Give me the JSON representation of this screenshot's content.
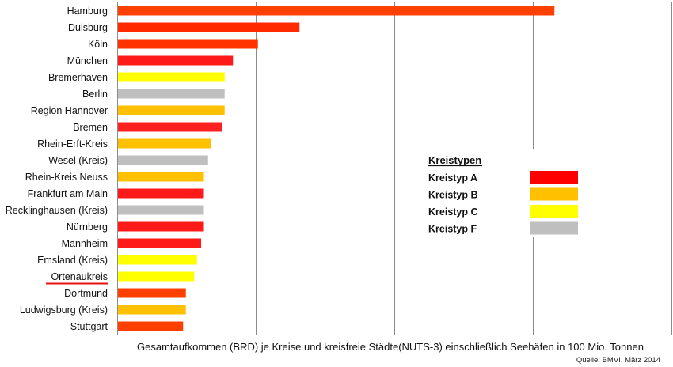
{
  "chart_data": {
    "type": "bar",
    "orientation": "horizontal",
    "xlabel": "Gesamtaufkommen (BRD) je Kreise und kreisfreie Städte(NUTS-3) einschließlich Seehäfen in 100 Mio. Tonnen",
    "source": "Quelle: BMVI, März 2014",
    "xlim": [
      0,
      0.4
    ],
    "grid": true,
    "legend_position": "right",
    "legend": {
      "title": "Kreistypen",
      "entries": [
        {
          "label": "Kreistyp A",
          "color": "#ff0000"
        },
        {
          "label": "Kreistyp B",
          "color": "#ffc000"
        },
        {
          "label": "Kreistyp C",
          "color": "#ffff00"
        },
        {
          "label": "Kreistyp F",
          "color": "#bfbfbf"
        }
      ]
    },
    "highlighted_category": "Ortenaukreis",
    "highlight_color": "#e81010",
    "bars": [
      {
        "label": "Hamburg",
        "value": 0.315,
        "color": "#ff4000"
      },
      {
        "label": "Duisburg",
        "value": 0.131,
        "color": "#ff2a00"
      },
      {
        "label": "Köln",
        "value": 0.101,
        "color": "#ff3300"
      },
      {
        "label": "München",
        "value": 0.083,
        "color": "#ff1a1a"
      },
      {
        "label": "Bremerhaven",
        "value": 0.077,
        "color": "#ffff00"
      },
      {
        "label": "Berlin",
        "value": 0.077,
        "color": "#bfbfbf"
      },
      {
        "label": "Region Hannover",
        "value": 0.077,
        "color": "#ffc000"
      },
      {
        "label": "Bremen",
        "value": 0.075,
        "color": "#ff2020"
      },
      {
        "label": "Rhein-Erft-Kreis",
        "value": 0.067,
        "color": "#ffc000"
      },
      {
        "label": "Wesel (Kreis)",
        "value": 0.065,
        "color": "#bfbfbf"
      },
      {
        "label": "Rhein-Kreis Neuss",
        "value": 0.062,
        "color": "#ffc000"
      },
      {
        "label": "Frankfurt am Main",
        "value": 0.062,
        "color": "#ff1a1a"
      },
      {
        "label": "Recklinghausen (Kreis)",
        "value": 0.062,
        "color": "#bfbfbf"
      },
      {
        "label": "Nürnberg",
        "value": 0.062,
        "color": "#ff1a1a"
      },
      {
        "label": "Mannheim",
        "value": 0.06,
        "color": "#ff1a1a"
      },
      {
        "label": "Emsland (Kreis)",
        "value": 0.057,
        "color": "#ffff00"
      },
      {
        "label": "Ortenaukreis",
        "value": 0.055,
        "color": "#ffff00"
      },
      {
        "label": "Dortmund",
        "value": 0.049,
        "color": "#ff4000"
      },
      {
        "label": "Ludwigsburg (Kreis)",
        "value": 0.049,
        "color": "#ffc000"
      },
      {
        "label": "Stuttgart",
        "value": 0.047,
        "color": "#ff4000"
      }
    ]
  }
}
